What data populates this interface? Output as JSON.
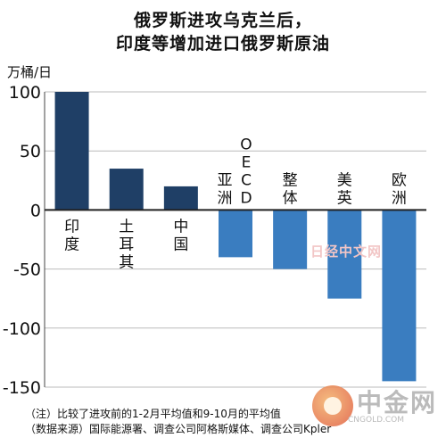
{
  "title": {
    "line1": "俄罗斯进攻乌克兰后，",
    "line2": "印度等增加进口俄罗斯原油"
  },
  "notes": {
    "note": "（注）比较了进攻前的1-2月平均值和9-10月的平均值",
    "source": "（数据来源）国际能源署、调查公司阿格斯媒体、调查公司Kpler"
  },
  "watermarks": {
    "site": "日经中文网",
    "brand": "中金网",
    "url": "CNGOLD.COM"
  },
  "colors": {
    "positive": "#1f3f66",
    "negative": "#3a7dc0",
    "grid": "#bbbbbb"
  },
  "chart_data": {
    "type": "bar",
    "title": "俄罗斯进攻乌克兰后，印度等增加进口俄罗斯原油",
    "ylabel": "万桶/日",
    "xlabel": "",
    "ylim": [
      -150,
      100
    ],
    "yticks": [
      100,
      50,
      0,
      -50,
      -100,
      -150
    ],
    "grid": true,
    "categories": [
      "印度",
      "土耳其",
      "中国",
      "亚洲OECD",
      "整体",
      "美英",
      "欧洲"
    ],
    "values": [
      100,
      35,
      20,
      -40,
      -50,
      -75,
      -145
    ],
    "category_label_lines": [
      [
        "印度"
      ],
      [
        "土耳其"
      ],
      [
        "中国"
      ],
      [
        "亚洲",
        "OECD"
      ],
      [
        "整体"
      ],
      [
        "美英"
      ],
      [
        "欧洲"
      ]
    ]
  }
}
